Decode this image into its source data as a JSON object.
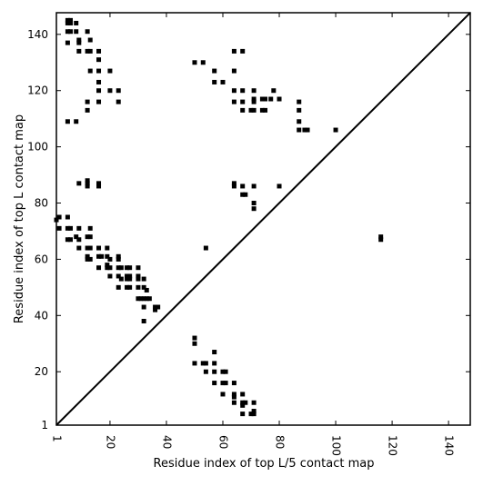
{
  "chart_data": {
    "type": "scatter",
    "xlabel": "Residue index of top L/5 contact map",
    "ylabel": "Residue index of top L contact map",
    "xlim": [
      1,
      147.7
    ],
    "ylim": [
      1,
      147.7
    ],
    "x_ticks": [
      1,
      20,
      40,
      60,
      80,
      100,
      120,
      140
    ],
    "y_ticks": [
      1,
      20,
      40,
      60,
      80,
      100,
      120,
      140
    ],
    "x_tick_rotation": -90,
    "grid": false,
    "legend": "none",
    "diagonal_line": true,
    "series": [
      {
        "marker_color": "#000000",
        "points": [
          [
            1,
            74
          ],
          [
            2,
            75
          ],
          [
            2,
            71
          ],
          [
            5,
            145
          ],
          [
            5,
            144
          ],
          [
            6,
            145
          ],
          [
            6,
            144
          ],
          [
            5,
            141
          ],
          [
            6,
            141
          ],
          [
            5,
            137
          ],
          [
            5,
            109
          ],
          [
            5,
            75
          ],
          [
            5,
            71
          ],
          [
            6,
            71
          ],
          [
            5,
            67
          ],
          [
            6,
            67
          ],
          [
            8,
            144
          ],
          [
            8,
            141
          ],
          [
            9,
            138
          ],
          [
            9,
            137
          ],
          [
            9,
            134
          ],
          [
            9,
            87
          ],
          [
            8,
            68
          ],
          [
            9,
            67
          ],
          [
            9,
            64
          ],
          [
            12,
            141
          ],
          [
            13,
            138
          ],
          [
            12,
            134
          ],
          [
            13,
            134
          ],
          [
            13,
            127
          ],
          [
            12,
            116
          ],
          [
            12,
            113
          ],
          [
            12,
            88
          ],
          [
            12,
            87
          ],
          [
            12,
            86
          ],
          [
            13,
            71
          ],
          [
            12,
            68
          ],
          [
            13,
            68
          ],
          [
            12,
            64
          ],
          [
            13,
            64
          ],
          [
            12,
            61
          ],
          [
            12,
            60
          ],
          [
            13,
            60
          ],
          [
            8,
            109
          ],
          [
            9,
            71
          ],
          [
            16,
            134
          ],
          [
            16,
            131
          ],
          [
            16,
            127
          ],
          [
            16,
            123
          ],
          [
            16,
            120
          ],
          [
            16,
            116
          ],
          [
            16,
            87
          ],
          [
            16,
            86
          ],
          [
            16,
            64
          ],
          [
            16,
            61
          ],
          [
            16,
            57
          ],
          [
            17,
            61
          ],
          [
            19,
            64
          ],
          [
            19,
            61
          ],
          [
            19,
            58
          ],
          [
            19,
            57
          ],
          [
            20,
            60
          ],
          [
            20,
            57
          ],
          [
            20,
            54
          ],
          [
            20,
            127
          ],
          [
            20,
            120
          ],
          [
            23,
            120
          ],
          [
            23,
            116
          ],
          [
            23,
            61
          ],
          [
            23,
            60
          ],
          [
            23,
            57
          ],
          [
            24,
            57
          ],
          [
            23,
            54
          ],
          [
            24,
            53
          ],
          [
            23,
            50
          ],
          [
            26,
            57
          ],
          [
            27,
            57
          ],
          [
            26,
            54
          ],
          [
            27,
            54
          ],
          [
            26,
            53
          ],
          [
            27,
            53
          ],
          [
            26,
            50
          ],
          [
            27,
            50
          ],
          [
            30,
            57
          ],
          [
            30,
            54
          ],
          [
            30,
            53
          ],
          [
            30,
            50
          ],
          [
            30,
            46
          ],
          [
            31,
            46
          ],
          [
            32,
            53
          ],
          [
            32,
            50
          ],
          [
            33,
            49
          ],
          [
            32,
            46
          ],
          [
            33,
            46
          ],
          [
            34,
            46
          ],
          [
            32,
            43
          ],
          [
            32,
            38
          ],
          [
            36,
            43
          ],
          [
            37,
            43
          ],
          [
            36,
            42
          ],
          [
            50,
            130
          ],
          [
            53,
            130
          ],
          [
            57,
            127
          ],
          [
            57,
            123
          ],
          [
            60,
            123
          ],
          [
            64,
            134
          ],
          [
            67,
            134
          ],
          [
            64,
            127
          ],
          [
            64,
            120
          ],
          [
            67,
            120
          ],
          [
            71,
            120
          ],
          [
            64,
            116
          ],
          [
            67,
            116
          ],
          [
            71,
            117
          ],
          [
            71,
            116
          ],
          [
            74,
            117
          ],
          [
            75,
            117
          ],
          [
            78,
            120
          ],
          [
            77,
            117
          ],
          [
            80,
            117
          ],
          [
            71,
            113
          ],
          [
            67,
            113
          ],
          [
            70,
            113
          ],
          [
            74,
            113
          ],
          [
            75,
            113
          ],
          [
            87,
            116
          ],
          [
            87,
            113
          ],
          [
            87,
            109
          ],
          [
            87,
            106
          ],
          [
            89,
            106
          ],
          [
            90,
            106
          ],
          [
            100,
            106
          ],
          [
            64,
            87
          ],
          [
            64,
            86
          ],
          [
            67,
            86
          ],
          [
            67,
            83
          ],
          [
            68,
            83
          ],
          [
            71,
            86
          ],
          [
            80,
            86
          ],
          [
            71,
            80
          ],
          [
            71,
            78
          ],
          [
            54,
            64
          ],
          [
            116,
            67
          ],
          [
            116,
            68
          ],
          [
            50,
            32
          ],
          [
            50,
            30
          ],
          [
            57,
            27
          ],
          [
            50,
            23
          ],
          [
            53,
            23
          ],
          [
            54,
            23
          ],
          [
            57,
            23
          ],
          [
            54,
            20
          ],
          [
            57,
            20
          ],
          [
            60,
            20
          ],
          [
            61,
            20
          ],
          [
            64,
            16
          ],
          [
            57,
            16
          ],
          [
            60,
            16
          ],
          [
            61,
            16
          ],
          [
            60,
            12
          ],
          [
            64,
            12
          ],
          [
            64,
            11
          ],
          [
            67,
            12
          ],
          [
            64,
            9
          ],
          [
            67,
            9
          ],
          [
            68,
            9
          ],
          [
            67,
            8
          ],
          [
            71,
            9
          ],
          [
            71,
            6
          ],
          [
            71,
            5
          ],
          [
            70,
            5
          ],
          [
            67,
            5
          ]
        ]
      }
    ]
  }
}
